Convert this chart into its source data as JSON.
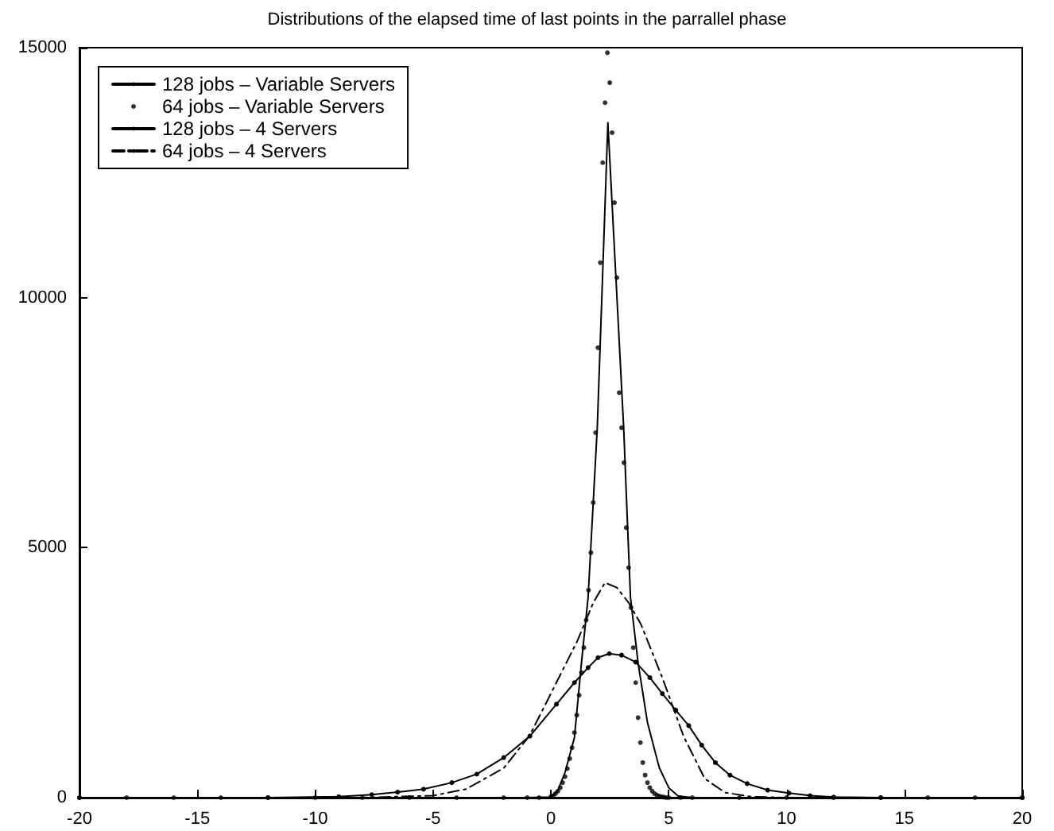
{
  "chart_data": {
    "type": "line",
    "title": "Distributions of the elapsed time of last points in the parrallel phase",
    "xlim": [
      -20,
      20
    ],
    "xticks": [
      -20,
      -15,
      -10,
      -5,
      0,
      5,
      10,
      15,
      20
    ],
    "ylim": [
      0,
      15000
    ],
    "yticks": [
      0,
      5000,
      10000,
      15000
    ],
    "grid": false,
    "legend": "top left",
    "series": [
      {
        "name": "128 jobs – Variable Servers",
        "color": "#000000",
        "marker": "none",
        "line_style": "solid",
        "x": [
          -20,
          -1,
          0,
          0.3,
          0.6,
          1.0,
          1.3,
          1.58,
          1.97,
          2.2,
          2.42,
          2.75,
          3.09,
          3.25,
          3.38,
          3.7,
          4.1,
          4.6,
          5.0,
          5.4,
          6,
          20
        ],
        "values": [
          0,
          0,
          10,
          150,
          500,
          1200,
          2700,
          4000,
          7400,
          10500,
          13500,
          10500,
          7400,
          5500,
          4000,
          2700,
          1500,
          600,
          200,
          30,
          0,
          0
        ]
      },
      {
        "name": "64 jobs – Variable Servers",
        "type": "scatter",
        "color": "#000000",
        "marker": "circle",
        "x": [
          -20,
          -18,
          -16,
          -14,
          -12,
          -10,
          -8,
          -6,
          -4,
          -2,
          -1,
          -0.5,
          0.0,
          0.1,
          0.2,
          0.3,
          0.4,
          0.5,
          0.6,
          0.7,
          0.8,
          0.9,
          1.0,
          1.1,
          1.2,
          1.3,
          1.4,
          1.5,
          1.6,
          1.7,
          1.8,
          1.9,
          2.0,
          2.1,
          2.2,
          2.3,
          2.4,
          2.5,
          2.6,
          2.7,
          2.8,
          2.9,
          3.0,
          3.1,
          3.2,
          3.3,
          3.4,
          3.5,
          3.6,
          3.7,
          3.8,
          3.9,
          4.0,
          4.1,
          4.2,
          4.3,
          4.4,
          4.5,
          4.6,
          4.7,
          4.8,
          4.9,
          5.0,
          5.5,
          6,
          8,
          10,
          12,
          14,
          16,
          18,
          20
        ],
        "values": [
          0,
          0,
          0,
          0,
          0,
          0,
          0,
          0,
          0,
          0,
          0,
          0,
          20,
          40,
          80,
          130,
          200,
          300,
          420,
          580,
          780,
          1000,
          1300,
          1650,
          2050,
          2500,
          3000,
          3550,
          4150,
          4900,
          5900,
          7300,
          9000,
          10700,
          12700,
          13900,
          14900,
          14300,
          13300,
          11900,
          10400,
          8100,
          7400,
          6700,
          5400,
          4600,
          3800,
          3000,
          2300,
          1600,
          1100,
          700,
          450,
          300,
          200,
          130,
          80,
          50,
          30,
          20,
          10,
          0,
          0,
          0,
          0,
          0,
          0,
          0,
          0,
          0,
          0,
          0
        ]
      },
      {
        "name": "128 jobs – 4 Servers",
        "color": "#000000",
        "marker": "circle",
        "line_style": "solid",
        "x": [
          -20,
          -12,
          -9,
          -7.6,
          -6.5,
          -5.4,
          -4.2,
          -3.14,
          -2,
          -0.89,
          0.24,
          1,
          1.58,
          2,
          2.48,
          3,
          3.6,
          4.2,
          4.73,
          5.3,
          5.85,
          6.4,
          6.98,
          7.6,
          8.33,
          9.2,
          10.1,
          11,
          12,
          14,
          20
        ],
        "values": [
          0,
          0,
          20,
          60,
          110,
          170,
          300,
          470,
          800,
          1230,
          1870,
          2300,
          2600,
          2800,
          2880,
          2850,
          2710,
          2400,
          2080,
          1750,
          1440,
          1050,
          700,
          450,
          280,
          150,
          90,
          40,
          10,
          0,
          0
        ]
      },
      {
        "name": "64 jobs – 4 Servers",
        "color": "#000000",
        "marker": "none",
        "line_style": "dashed",
        "x": [
          -20,
          -8,
          -5,
          -3.6,
          -2,
          -0.9,
          0,
          1.13,
          1.8,
          2.3,
          2.8,
          3.3,
          3.83,
          4.73,
          5.63,
          6.53,
          7.4,
          8.5,
          10,
          20
        ],
        "values": [
          0,
          0,
          40,
          170,
          590,
          1240,
          2080,
          3140,
          3900,
          4300,
          4200,
          3900,
          3460,
          2400,
          1230,
          380,
          100,
          20,
          0,
          0
        ]
      }
    ]
  }
}
